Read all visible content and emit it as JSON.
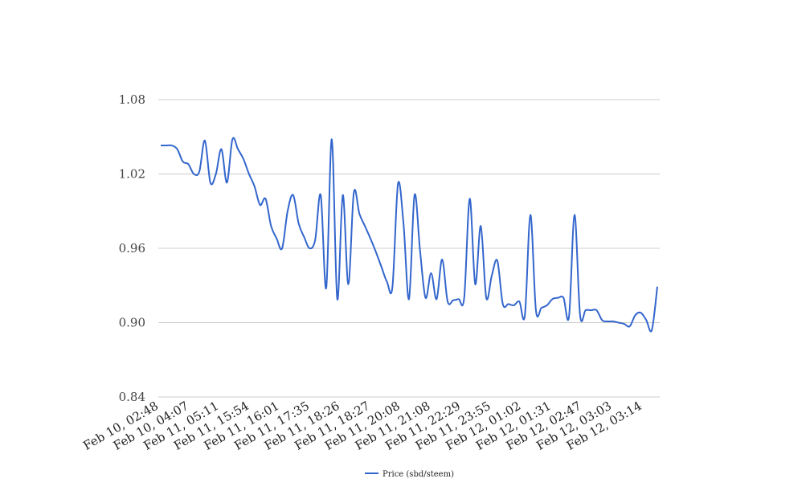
{
  "chart_data": {
    "type": "line",
    "ylim": [
      0.84,
      1.08
    ],
    "y_ticks": [
      "0.84",
      "0.90",
      "0.96",
      "1.02",
      "1.08"
    ],
    "y_tick_values": [
      0.84,
      0.9,
      0.96,
      1.02,
      1.08
    ],
    "x_tick_labels": [
      "Feb 10, 02:48",
      "Feb 10, 04:07",
      "Feb 11, 05:11",
      "Feb 11, 15:54",
      "Feb 11, 16:01",
      "Feb 11, 17:35",
      "Feb 11, 18:26",
      "Feb 11, 18:27",
      "Feb 11, 20:08",
      "Feb 11, 21:08",
      "Feb 11, 22:29",
      "Feb 11, 23:55",
      "Feb 12, 01:02",
      "Feb 12, 01:31",
      "Feb 12, 02:47",
      "Feb 12, 03:03",
      "Feb 12, 03:14"
    ],
    "grid": true,
    "legend_position": "bottom",
    "series": [
      {
        "name": "Price (sbd/steem)",
        "color": "#3366cc",
        "values": [
          1.043,
          1.043,
          1.043,
          1.04,
          1.03,
          1.028,
          1.02,
          1.022,
          1.047,
          1.013,
          1.02,
          1.04,
          1.013,
          1.048,
          1.04,
          1.032,
          1.02,
          1.01,
          0.995,
          1.0,
          0.978,
          0.968,
          0.96,
          0.99,
          1.003,
          0.98,
          0.969,
          0.96,
          0.967,
          1.003,
          0.928,
          1.048,
          0.919,
          1.003,
          0.931,
          1.005,
          0.988,
          0.978,
          0.968,
          0.957,
          0.945,
          0.933,
          0.929,
          1.012,
          0.98,
          0.919,
          1.003,
          0.958,
          0.92,
          0.94,
          0.919,
          0.951,
          0.917,
          0.918,
          0.919,
          0.92,
          1.0,
          0.931,
          0.978,
          0.92,
          0.938,
          0.95,
          0.915,
          0.915,
          0.914,
          0.917,
          0.906,
          0.987,
          0.91,
          0.912,
          0.914,
          0.919,
          0.92,
          0.92,
          0.905,
          0.987,
          0.906,
          0.91,
          0.91,
          0.91,
          0.902,
          0.901,
          0.901,
          0.9,
          0.899,
          0.897,
          0.906,
          0.908,
          0.902,
          0.894,
          0.929
        ]
      }
    ]
  }
}
